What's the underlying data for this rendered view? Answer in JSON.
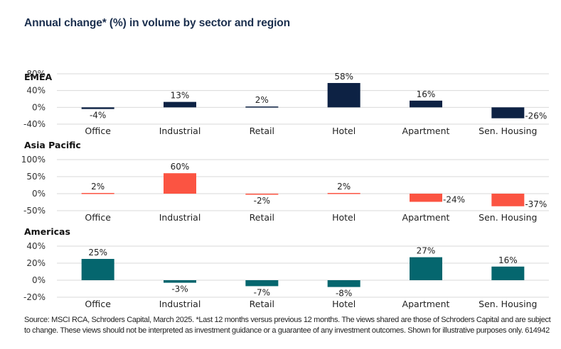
{
  "chart_data": {
    "type": "bar",
    "title": "Annual change* (%) in volume by sector and region",
    "categories": [
      "Office",
      "Industrial",
      "Retail",
      "Hotel",
      "Apartment",
      "Sen. Housing"
    ],
    "panels": [
      {
        "name": "EMEA",
        "color": "#0d2244",
        "ylim": [
          -40,
          80
        ],
        "yticks": [
          80,
          40,
          0,
          -40
        ],
        "ytick_labels": [
          "80%",
          "40%",
          "0%",
          "-40%"
        ],
        "values": [
          -4,
          13,
          2,
          58,
          16,
          -26
        ],
        "value_labels": [
          "-4%",
          "13%",
          "2%",
          "58%",
          "16%",
          "-26%"
        ]
      },
      {
        "name": "Asia Pacific",
        "color": "#fb5442",
        "ylim": [
          -50,
          100
        ],
        "yticks": [
          100,
          50,
          0,
          -50
        ],
        "ytick_labels": [
          "100%",
          "50%",
          "0%",
          "-50%"
        ],
        "values": [
          2,
          60,
          -2,
          2,
          -24,
          -37
        ],
        "value_labels": [
          "2%",
          "60%",
          "-2%",
          "2%",
          "-24%",
          "-37%"
        ]
      },
      {
        "name": "Americas",
        "color": "#05666e",
        "ylim": [
          -20,
          40
        ],
        "yticks": [
          40,
          20,
          0,
          -20
        ],
        "ytick_labels": [
          "40%",
          "20%",
          "0%",
          "-20%"
        ],
        "values": [
          25,
          -3,
          -7,
          -8,
          27,
          16
        ],
        "value_labels": [
          "25%",
          "-3%",
          "-7%",
          "-8%",
          "27%",
          "16%"
        ]
      }
    ],
    "xlabel": "",
    "ylabel": "",
    "grid": true,
    "legend": "none"
  },
  "source_note": "Source: MSCI RCA, Schroders Capital, March 2025. *Last 12 months versus previous 12 months. The views shared are those of Schroders Capital and are subject to change. These views should not be interpreted as investment guidance or a guarantee of any investment outcomes. Shown for illustrative purposes only. 614942"
}
